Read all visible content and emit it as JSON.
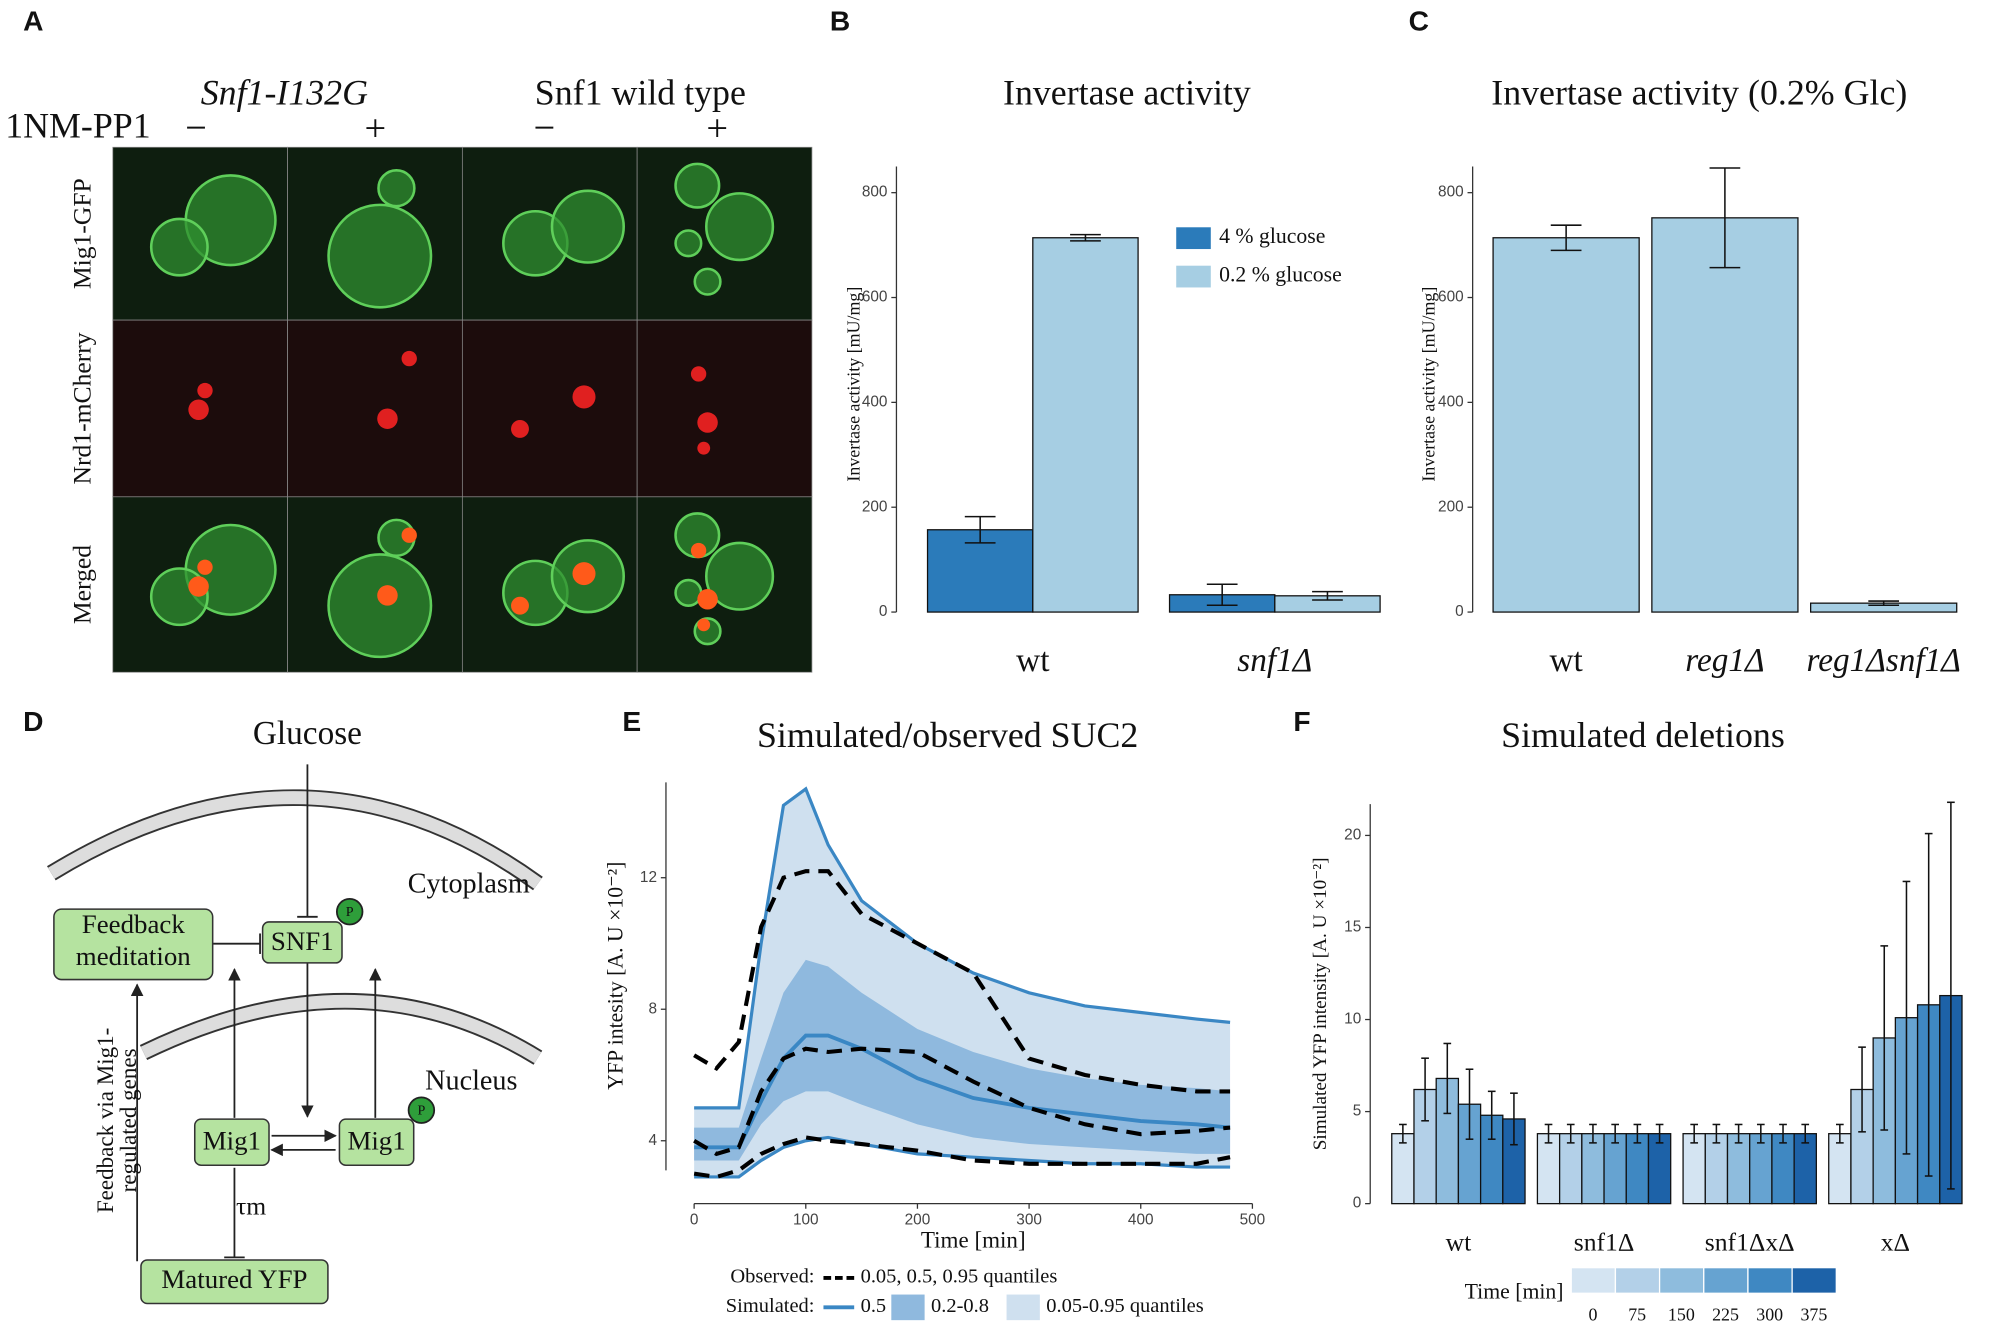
{
  "panel_a": {
    "label": "A",
    "treatment": "1NM-PP1",
    "strains": [
      "Snf1-I132G",
      "Snf1 wild type"
    ],
    "conditions": [
      "−",
      "+",
      "−",
      "+"
    ],
    "channels": [
      "Mig1-GFP",
      "Nrd1-mCherry",
      "Merged"
    ]
  },
  "panel_d": {
    "label": "D",
    "glucose": "Glucose",
    "cytoplasm": "Cytoplasm",
    "nucleus": "Nucleus",
    "feedback_box": [
      "Feedback",
      "meditation"
    ],
    "snf1": "SNF1",
    "mig1": "Mig1",
    "mig1_p": "Mig1",
    "phospho": "P",
    "delay": "τm",
    "reporter": "Matured YFP",
    "feedback_label": [
      "Feedback via Mig1-",
      "regulated genes"
    ]
  },
  "chart_data": [
    {
      "label": "B",
      "type": "bar",
      "title": "Invertase activity",
      "ylabel": "Invertase activity [mU/mg]",
      "categories": [
        "wt",
        "snf1Δ"
      ],
      "series": [
        {
          "name": "4 % glucose",
          "color": "#2b7bba",
          "values": [
            157,
            33
          ],
          "errors": [
            25,
            20
          ]
        },
        {
          "name": "0.2 % glucose",
          "color": "#a6cee3",
          "values": [
            714,
            31
          ],
          "errors": [
            6,
            8
          ]
        }
      ],
      "ylim": [
        0,
        850
      ],
      "yticks": [
        0,
        200,
        400,
        600,
        800
      ],
      "legend": "top-right"
    },
    {
      "label": "C",
      "type": "bar",
      "title": "Invertase activity (0.2% Glc)",
      "ylabel": "Invertase activity [mU/mg]",
      "categories": [
        "wt",
        "reg1Δ",
        "reg1Δsnf1Δ"
      ],
      "series": [
        {
          "color": "#a6cee3",
          "values": [
            714,
            752,
            17
          ],
          "errors": [
            24,
            95,
            4
          ]
        }
      ],
      "ylim": [
        0,
        850
      ],
      "yticks": [
        0,
        200,
        400,
        600,
        800
      ]
    },
    {
      "label": "E",
      "type": "line",
      "title": "Simulated/observed SUC2",
      "xlabel": "Time [min]",
      "ylabel": "YFP intesity [A. U ×10⁻²]",
      "x": [
        0,
        20,
        40,
        60,
        80,
        100,
        120,
        150,
        200,
        250,
        300,
        350,
        400,
        450,
        480
      ],
      "xlim": [
        0,
        500
      ],
      "xticks": [
        0,
        100,
        200,
        300,
        400,
        500
      ],
      "ylim": [
        3.1,
        14.9
      ],
      "yticks": [
        4,
        8,
        12
      ],
      "observed": {
        "label": "Observed:",
        "name": "0.05, 0.5, 0.95 quantiles",
        "color": "#000000",
        "q05": [
          3.0,
          2.9,
          3.1,
          3.6,
          3.9,
          4.1,
          4.0,
          3.9,
          3.7,
          3.4,
          3.3,
          3.3,
          3.3,
          3.3,
          3.5
        ],
        "q50": [
          4.0,
          3.6,
          3.8,
          5.5,
          6.5,
          6.8,
          6.7,
          6.8,
          6.7,
          5.8,
          5.0,
          4.5,
          4.2,
          4.3,
          4.4
        ],
        "q95": [
          6.6,
          6.2,
          7.0,
          10.5,
          12.0,
          12.2,
          12.2,
          10.9,
          10.0,
          9.1,
          6.5,
          6.0,
          5.7,
          5.5,
          5.5
        ]
      },
      "simulated": {
        "label": "Simulated:",
        "median": {
          "name": "0.5",
          "color": "#3a87c4",
          "values": [
            3.8,
            3.8,
            3.8,
            5.2,
            6.5,
            7.2,
            7.2,
            6.8,
            5.9,
            5.3,
            5.0,
            4.8,
            4.6,
            4.5,
            4.4
          ]
        },
        "bands": [
          {
            "name": "0.05-0.95 quantiles",
            "color": "#cfe0ef",
            "lower": [
              2.9,
              2.9,
              2.9,
              3.4,
              3.8,
              4.0,
              4.1,
              3.9,
              3.6,
              3.5,
              3.4,
              3.3,
              3.3,
              3.2,
              3.2
            ],
            "upper": [
              5.0,
              5.0,
              5.0,
              10.0,
              14.2,
              14.7,
              13.0,
              11.3,
              10.0,
              9.1,
              8.5,
              8.1,
              7.9,
              7.7,
              7.6
            ]
          },
          {
            "name": "0.2-0.8",
            "color": "#8fb9de",
            "lower": [
              3.4,
              3.4,
              3.4,
              4.5,
              5.2,
              5.5,
              5.5,
              5.1,
              4.5,
              4.1,
              3.9,
              3.8,
              3.7,
              3.6,
              3.6
            ],
            "upper": [
              4.4,
              4.4,
              4.4,
              6.5,
              8.5,
              9.5,
              9.3,
              8.5,
              7.4,
              6.7,
              6.2,
              5.9,
              5.7,
              5.6,
              5.5
            ]
          }
        ]
      }
    },
    {
      "label": "F",
      "type": "bar",
      "title": "Simulated deletions",
      "ylabel": "Simulated YFP intensity [A. U ×10⁻²]",
      "categories": [
        "wt",
        "snf1Δ",
        "snf1ΔxΔ",
        "xΔ"
      ],
      "legend_title": "Time [min]",
      "series": [
        {
          "name": "0",
          "color": "#d4e4f2",
          "values": [
            3.8,
            3.8,
            3.8,
            3.8
          ],
          "errors": [
            0.5,
            0.5,
            0.5,
            0.5
          ]
        },
        {
          "name": "75",
          "color": "#b3d0e8",
          "values": [
            6.2,
            3.8,
            3.8,
            6.2
          ],
          "errors": [
            1.7,
            0.5,
            0.5,
            2.3
          ]
        },
        {
          "name": "150",
          "color": "#8ebcdd",
          "values": [
            6.8,
            3.8,
            3.8,
            9.0
          ],
          "errors": [
            1.9,
            0.5,
            0.5,
            5.0
          ]
        },
        {
          "name": "225",
          "color": "#66a3d1",
          "values": [
            5.4,
            3.8,
            3.8,
            10.1
          ],
          "errors": [
            1.9,
            0.5,
            0.5,
            7.4
          ]
        },
        {
          "name": "300",
          "color": "#3f88c2",
          "values": [
            4.8,
            3.8,
            3.8,
            10.8
          ],
          "errors": [
            1.3,
            0.5,
            0.5,
            9.3
          ]
        },
        {
          "name": "375",
          "color": "#1d62a8",
          "values": [
            4.6,
            3.8,
            3.8,
            11.3
          ],
          "errors": [
            1.4,
            0.5,
            0.5,
            10.5
          ]
        }
      ],
      "ylim": [
        0,
        21.7
      ],
      "yticks": [
        0,
        5,
        10,
        15,
        20
      ],
      "legend": "bottom"
    }
  ]
}
